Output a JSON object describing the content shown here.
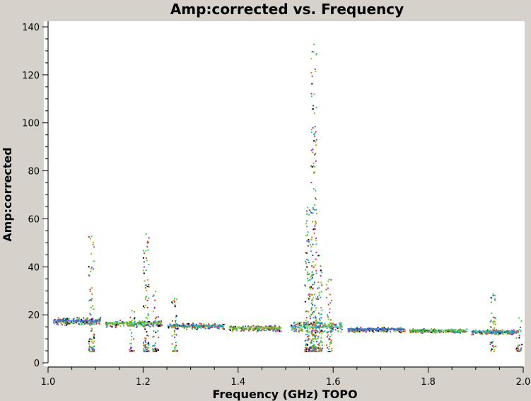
{
  "chart_data": {
    "type": "scatter",
    "title": "Amp:corrected vs. Frequency",
    "xlabel": "Frequency (GHz) TOPO",
    "ylabel": "Amp:corrected",
    "xlim": [
      1.0,
      2.0
    ],
    "ylim": [
      0,
      140
    ],
    "xticks": [
      "1.0",
      "1.2",
      "1.4",
      "1.6",
      "1.8",
      "2.0"
    ],
    "yticks": [
      "0",
      "20",
      "40",
      "60",
      "80",
      "100",
      "120",
      "140"
    ],
    "grid": false,
    "colors": [
      "#1f5fd6",
      "#1e9fd0",
      "#22c0a0",
      "#3ccf3c",
      "#7fd11f",
      "#c8a000",
      "#d4781a",
      "#b05a14",
      "#e02060",
      "#000000",
      "#9b30d0"
    ],
    "bands": [
      {
        "x": [
          1.01,
          1.11
        ],
        "level": 17.5,
        "spread": 1.2
      },
      {
        "x": [
          1.12,
          1.24
        ],
        "level": 16.5,
        "spread": 1.0
      },
      {
        "x": [
          1.25,
          1.37
        ],
        "level": 15.5,
        "spread": 0.8
      },
      {
        "x": [
          1.38,
          1.49
        ],
        "level": 14.5,
        "spread": 0.8
      },
      {
        "x": [
          1.51,
          1.62
        ],
        "level": 15.0,
        "spread": 2.0
      },
      {
        "x": [
          1.63,
          1.75
        ],
        "level": 14.0,
        "spread": 0.6
      },
      {
        "x": [
          1.76,
          1.88
        ],
        "level": 13.5,
        "spread": 0.5
      },
      {
        "x": [
          1.89,
          1.99
        ],
        "level": 13.0,
        "spread": 0.6
      }
    ],
    "spikes": [
      {
        "x": 1.09,
        "max": 53
      },
      {
        "x": 1.175,
        "max": 22
      },
      {
        "x": 1.205,
        "max": 54
      },
      {
        "x": 1.225,
        "max": 30
      },
      {
        "x": 1.265,
        "max": 27
      },
      {
        "x": 1.545,
        "max": 65
      },
      {
        "x": 1.558,
        "max": 133
      },
      {
        "x": 1.57,
        "max": 45
      },
      {
        "x": 1.59,
        "max": 35
      },
      {
        "x": 1.935,
        "max": 29
      },
      {
        "x": 1.99,
        "max": 19
      }
    ]
  }
}
